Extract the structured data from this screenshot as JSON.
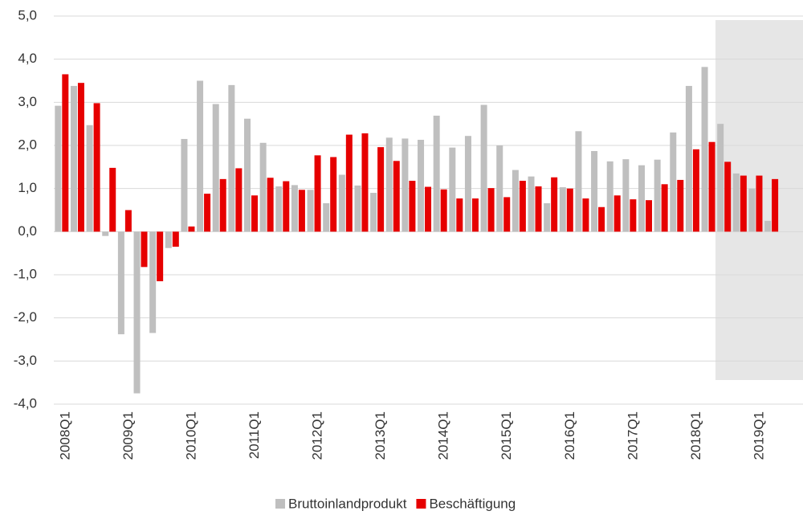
{
  "chart_data": {
    "type": "bar",
    "categories": [
      "2008Q1",
      null,
      null,
      null,
      "2009Q1",
      null,
      null,
      null,
      "2010Q1",
      null,
      null,
      null,
      "2011Q1",
      null,
      null,
      null,
      "2012Q1",
      null,
      null,
      null,
      "2013Q1",
      null,
      null,
      null,
      "2014Q1",
      null,
      null,
      null,
      "2015Q1",
      null,
      null,
      null,
      "2016Q1",
      null,
      null,
      null,
      "2017Q1",
      null,
      null,
      null,
      "2018Q1",
      null,
      null,
      null,
      "2019Q1",
      null
    ],
    "series": [
      {
        "name": "Bruttoinlandprodukt",
        "color": "#bfbfbf",
        "values": [
          2.92,
          3.38,
          2.47,
          -0.1,
          -2.38,
          -3.75,
          -2.35,
          -0.38,
          2.15,
          3.5,
          2.96,
          3.4,
          2.62,
          2.06,
          1.05,
          1.08,
          0.97,
          0.66,
          1.32,
          1.07,
          0.9,
          2.18,
          2.16,
          2.13,
          2.69,
          1.95,
          2.22,
          2.94,
          2.0,
          1.43,
          1.28,
          0.66,
          1.03,
          2.33,
          1.87,
          1.63,
          1.68,
          1.54,
          1.67,
          2.3,
          3.38,
          3.82,
          2.5,
          1.35,
          1.0,
          0.25
        ]
      },
      {
        "name": "Beschäftigung",
        "color": "#e60000",
        "values": [
          3.65,
          3.45,
          2.98,
          1.48,
          0.5,
          -0.82,
          -1.15,
          -0.35,
          0.12,
          0.88,
          1.22,
          1.47,
          0.84,
          1.25,
          1.17,
          0.97,
          1.77,
          1.73,
          2.25,
          2.28,
          1.96,
          1.64,
          1.18,
          1.04,
          0.98,
          0.77,
          0.77,
          1.01,
          0.8,
          1.18,
          1.05,
          1.26,
          1.0,
          0.77,
          0.57,
          0.84,
          0.75,
          0.73,
          1.1,
          1.2,
          1.91,
          2.08,
          1.62,
          1.3,
          1.3,
          1.22
        ]
      }
    ],
    "ylim": [
      -4,
      5
    ],
    "yticks": [
      {
        "value": -4,
        "label": "-4,0"
      },
      {
        "value": -3,
        "label": "-3,0"
      },
      {
        "value": -2,
        "label": "-2,0"
      },
      {
        "value": -1,
        "label": "-1,0"
      },
      {
        "value": 0,
        "label": "0,0"
      },
      {
        "value": 1,
        "label": "1,0"
      },
      {
        "value": 2,
        "label": "2,0"
      },
      {
        "value": 3,
        "label": "3,0"
      },
      {
        "value": 4,
        "label": "4,0"
      },
      {
        "value": 5,
        "label": "5,0"
      }
    ],
    "grid": true,
    "legend": "bottom"
  }
}
